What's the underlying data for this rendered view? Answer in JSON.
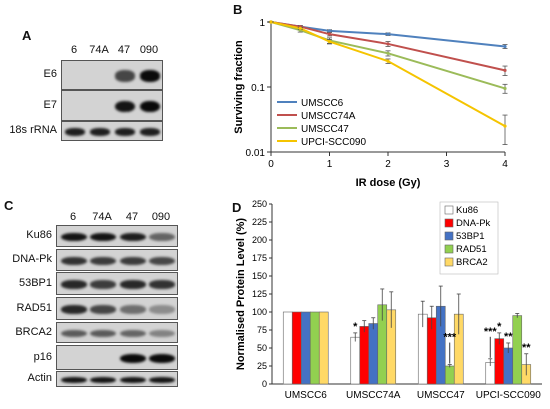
{
  "panel_a": {
    "letter": "A",
    "lanes": [
      "6",
      "74A",
      "47",
      "090"
    ],
    "rows": [
      {
        "label": "E6",
        "bands": [
          0,
          0,
          0.7,
          1.0
        ]
      },
      {
        "label": "E7",
        "bands": [
          0,
          0,
          0.95,
          1.0
        ]
      },
      {
        "label": "18s rRNA",
        "bands": [
          0.9,
          0.9,
          0.9,
          0.9
        ]
      }
    ]
  },
  "panel_c": {
    "letter": "C",
    "lanes": [
      "6",
      "74A",
      "47",
      "090"
    ],
    "rows": [
      {
        "label": "Ku86",
        "bands": [
          0.95,
          0.95,
          0.9,
          0.55
        ]
      },
      {
        "label": "DNA-Pk",
        "bands": [
          0.8,
          0.75,
          0.75,
          0.7
        ]
      },
      {
        "label": "53BP1",
        "bands": [
          0.85,
          0.75,
          0.85,
          0.8
        ]
      },
      {
        "label": "RAD51",
        "bands": [
          0.85,
          0.7,
          0.5,
          0.35
        ]
      },
      {
        "label": "BRCA2",
        "bands": [
          0.6,
          0.6,
          0.55,
          0.4
        ]
      },
      {
        "label": "p16",
        "bands": [
          0,
          0,
          1.0,
          1.0
        ]
      },
      {
        "label": "Actin",
        "bands": [
          0.95,
          0.95,
          0.95,
          0.95
        ]
      }
    ]
  },
  "chart_data": [
    {
      "panel": "B",
      "type": "line",
      "xlabel": "IR dose (Gy)",
      "ylabel": "Surviving fraction",
      "yscale": "log",
      "ylim": [
        0.01,
        1
      ],
      "xlim": [
        0,
        4
      ],
      "xticks": [
        "0",
        "1",
        "2",
        "3",
        "4"
      ],
      "yticks": [
        "0.01",
        "0.1",
        "1"
      ],
      "legend_position": "bottom-left",
      "series": [
        {
          "name": "UMSCC6",
          "color": "#4f81bd",
          "x": [
            0,
            0.5,
            1,
            2,
            4
          ],
          "y": [
            1.0,
            0.85,
            0.73,
            0.65,
            0.42
          ],
          "err": [
            0.02,
            0.03,
            0.03,
            0.03,
            0.03
          ]
        },
        {
          "name": "UMSCC74A",
          "color": "#c0504d",
          "x": [
            0,
            0.5,
            1,
            2,
            4
          ],
          "y": [
            1.0,
            0.85,
            0.65,
            0.46,
            0.18
          ],
          "err": [
            0.02,
            0.03,
            0.04,
            0.04,
            0.03
          ]
        },
        {
          "name": "UMSCC47",
          "color": "#9bbb59",
          "x": [
            0,
            0.5,
            1,
            2,
            4
          ],
          "y": [
            1.0,
            0.75,
            0.52,
            0.33,
            0.095
          ],
          "err": [
            0.02,
            0.05,
            0.05,
            0.03,
            0.015
          ]
        },
        {
          "name": "UPCI-SCC090",
          "color": "#f5c400",
          "x": [
            0,
            0.5,
            1,
            2,
            4
          ],
          "y": [
            1.0,
            0.8,
            0.5,
            0.25,
            0.025
          ],
          "err": [
            0.02,
            0.03,
            0.04,
            0.02,
            0.012
          ]
        }
      ]
    },
    {
      "panel": "D",
      "type": "bar",
      "ylabel": "Normalised Protein Level (%)",
      "ylim": [
        0,
        250
      ],
      "yticks": [
        "0",
        "25",
        "50",
        "75",
        "100",
        "125",
        "150",
        "175",
        "200",
        "225",
        "250"
      ],
      "categories": [
        "UMSCC6",
        "UMSCC74A",
        "UMSCC47",
        "UPCI-SCC090"
      ],
      "legend_position": "top-right",
      "series": [
        {
          "name": "Ku86",
          "color": "#ffffff",
          "values": [
            100,
            65,
            97,
            30
          ],
          "err": [
            0,
            6,
            18,
            5
          ]
        },
        {
          "name": "DNA-Pk",
          "color": "#ff0000",
          "values": [
            100,
            80,
            92,
            63
          ],
          "err": [
            0,
            8,
            16,
            8
          ]
        },
        {
          "name": "53BP1",
          "color": "#4472c4",
          "values": [
            100,
            84,
            108,
            50
          ],
          "err": [
            0,
            8,
            28,
            7
          ]
        },
        {
          "name": "RAD51",
          "color": "#92d050",
          "values": [
            100,
            110,
            25,
            95
          ],
          "err": [
            0,
            22,
            2,
            3
          ]
        },
        {
          "name": "BRCA2",
          "color": "#ffd966",
          "values": [
            100,
            103,
            97,
            27
          ],
          "err": [
            0,
            25,
            28,
            15
          ]
        }
      ],
      "annotations": [
        {
          "text": "*",
          "category": 1,
          "series": 0
        },
        {
          "text": "***",
          "category": 2,
          "series": 3
        },
        {
          "text": "***",
          "category": 3,
          "series": 0
        },
        {
          "text": "*",
          "category": 3,
          "series": 1
        },
        {
          "text": "**",
          "category": 3,
          "series": 2
        },
        {
          "text": "**",
          "category": 3,
          "series": 4
        }
      ]
    }
  ]
}
